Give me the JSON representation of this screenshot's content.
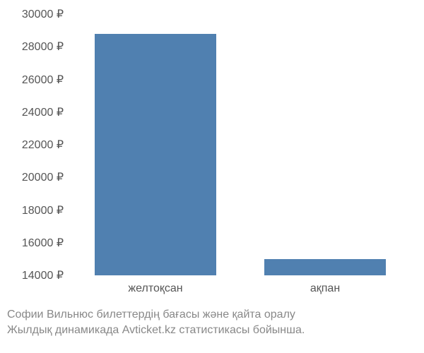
{
  "chart": {
    "type": "bar",
    "categories": [
      "желтоқсан",
      "ақпан"
    ],
    "values": [
      28800,
      15000
    ],
    "bar_color": "#5080b0",
    "background_color": "#ffffff",
    "y_baseline": 14000,
    "ylim": [
      14000,
      30000
    ],
    "ytick_step": 2000,
    "yticks": [
      "14000 ₽",
      "16000 ₽",
      "18000 ₽",
      "20000 ₽",
      "22000 ₽",
      "24000 ₽",
      "26000 ₽",
      "28000 ₽",
      "30000 ₽"
    ],
    "tick_color": "#555555",
    "tick_fontsize": 16,
    "bar_width_ratio": 0.72,
    "caption_line1": "Софии Вильнюс билеттердің бағасы және қайта оралу",
    "caption_line2": "Жылдық динамикада Avticket.kz статистикасы бойынша.",
    "caption_color": "#888888",
    "caption_fontsize": 16
  }
}
